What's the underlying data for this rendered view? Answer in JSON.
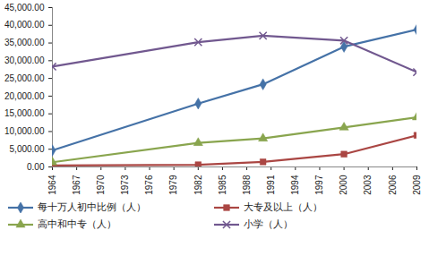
{
  "chart_data": {
    "type": "line",
    "x": [
      1964,
      1982,
      1990,
      2000,
      2009
    ],
    "xlim": [
      1964,
      2009
    ],
    "xticks": [
      1964,
      1967,
      1970,
      1973,
      1976,
      1979,
      1982,
      1985,
      1988,
      1991,
      1994,
      1997,
      2000,
      2003,
      2006,
      2009
    ],
    "ylim": [
      0,
      45000
    ],
    "yticks": [
      {
        "value": 0,
        "label": "0.00"
      },
      {
        "value": 5000,
        "label": "5,000.00"
      },
      {
        "value": 10000,
        "label": "10,000.00"
      },
      {
        "value": 15000,
        "label": "15,000.00"
      },
      {
        "value": 20000,
        "label": "20,000.00"
      },
      {
        "value": 25000,
        "label": "25,000.00"
      },
      {
        "value": 30000,
        "label": "30,000.00"
      },
      {
        "value": 35000,
        "label": "35,000.00"
      },
      {
        "value": 40000,
        "label": "40,000.00"
      },
      {
        "value": 45000,
        "label": "45,000.00"
      }
    ],
    "grid": false,
    "legend": "bottom",
    "series": [
      {
        "name": "每十万人初中比例（人）",
        "color": "#4572A7",
        "marker": "diamond",
        "values": [
          4680,
          17892,
          23344,
          33961,
          38788
        ]
      },
      {
        "name": "大专及以上（人）",
        "color": "#AA4643",
        "marker": "square",
        "values": [
          416,
          615,
          1422,
          3611,
          8930
        ]
      },
      {
        "name": "高中和中专（人）",
        "color": "#89A54E",
        "marker": "triangle",
        "values": [
          1319,
          6779,
          8039,
          11146,
          14032
        ]
      },
      {
        "name": "小学（人）",
        "color": "#71588F",
        "marker": "x",
        "values": [
          28330,
          35237,
          37057,
          35701,
          26779
        ]
      }
    ]
  }
}
